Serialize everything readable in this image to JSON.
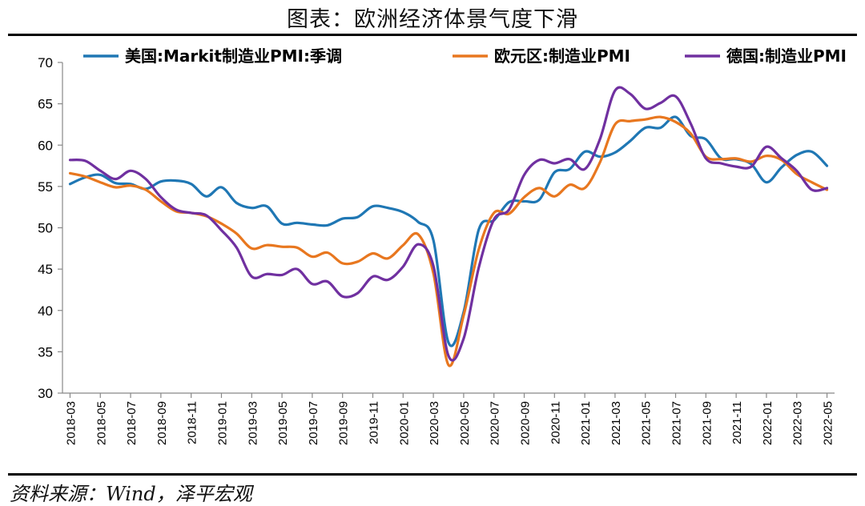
{
  "page": {
    "title": "图表：欧洲经济体景气度下滑",
    "source": "资料来源：Wind，泽平宏观"
  },
  "chart_data": {
    "type": "line",
    "title": "图表：欧洲经济体景气度下滑",
    "ylim": [
      30,
      70
    ],
    "yticks": [
      30,
      35,
      40,
      45,
      50,
      55,
      60,
      65,
      70
    ],
    "grid": false,
    "legend_position": "top",
    "x": [
      "2018-03",
      "2018-04",
      "2018-05",
      "2018-06",
      "2018-07",
      "2018-08",
      "2018-09",
      "2018-10",
      "2018-11",
      "2018-12",
      "2019-01",
      "2019-02",
      "2019-03",
      "2019-04",
      "2019-05",
      "2019-06",
      "2019-07",
      "2019-08",
      "2019-09",
      "2019-10",
      "2019-11",
      "2019-12",
      "2020-01",
      "2020-02",
      "2020-03",
      "2020-04",
      "2020-05",
      "2020-06",
      "2020-07",
      "2020-08",
      "2020-09",
      "2020-10",
      "2020-11",
      "2020-12",
      "2021-01",
      "2021-02",
      "2021-03",
      "2021-04",
      "2021-05",
      "2021-06",
      "2021-07",
      "2021-08",
      "2021-09",
      "2021-10",
      "2021-11",
      "2021-12",
      "2022-01",
      "2022-02",
      "2022-03",
      "2022-04",
      "2022-05"
    ],
    "x_tick_labels": [
      "2018-03",
      "2018-05",
      "2018-07",
      "2018-09",
      "2018-11",
      "2019-01",
      "2019-03",
      "2019-05",
      "2019-07",
      "2019-09",
      "2019-11",
      "2020-01",
      "2020-03",
      "2020-05",
      "2020-07",
      "2020-09",
      "2020-11",
      "2021-01",
      "2021-03",
      "2021-05",
      "2021-07",
      "2021-09",
      "2021-11",
      "2022-01",
      "2022-03",
      "2022-05"
    ],
    "series": [
      {
        "name": "美国:Markit制造业PMI:季调",
        "color": "#1f77b4",
        "values": [
          55.3,
          56.1,
          56.4,
          55.4,
          55.3,
          54.7,
          55.6,
          55.7,
          55.3,
          53.8,
          54.9,
          53.0,
          52.4,
          52.6,
          50.5,
          50.6,
          50.4,
          50.3,
          51.1,
          51.3,
          52.6,
          52.4,
          51.9,
          50.7,
          48.5,
          36.1,
          39.8,
          49.8,
          50.9,
          53.1,
          53.2,
          53.4,
          56.7,
          57.1,
          59.2,
          58.6,
          59.1,
          60.5,
          62.1,
          62.1,
          63.4,
          61.1,
          60.7,
          58.4,
          58.3,
          57.7,
          55.5,
          57.3,
          58.8,
          59.2,
          57.5
        ]
      },
      {
        "name": "欧元区:制造业PMI",
        "color": "#e8771f",
        "values": [
          56.6,
          56.2,
          55.5,
          54.9,
          55.1,
          54.6,
          53.2,
          52.0,
          51.8,
          51.4,
          50.5,
          49.3,
          47.5,
          47.9,
          47.7,
          47.6,
          46.5,
          47.0,
          45.7,
          45.9,
          46.9,
          46.3,
          47.9,
          49.2,
          44.5,
          33.4,
          39.4,
          47.4,
          51.8,
          51.7,
          53.7,
          54.8,
          53.8,
          55.2,
          54.8,
          57.9,
          62.5,
          62.9,
          63.1,
          63.4,
          62.8,
          61.4,
          58.6,
          58.3,
          58.4,
          58.0,
          58.7,
          58.2,
          56.5,
          55.5,
          54.6
        ]
      },
      {
        "name": "德国:制造业PMI",
        "color": "#7030a0",
        "values": [
          58.2,
          58.1,
          56.9,
          55.9,
          56.9,
          55.9,
          53.7,
          52.2,
          51.8,
          51.5,
          49.7,
          47.6,
          44.1,
          44.4,
          44.3,
          45.0,
          43.2,
          43.5,
          41.7,
          42.1,
          44.1,
          43.7,
          45.3,
          48.0,
          45.4,
          34.5,
          36.6,
          45.2,
          51.0,
          52.2,
          56.4,
          58.2,
          57.8,
          58.3,
          57.1,
          60.7,
          66.6,
          66.2,
          64.4,
          65.1,
          65.9,
          62.6,
          58.4,
          57.8,
          57.4,
          57.4,
          59.8,
          58.4,
          56.9,
          54.6,
          54.8
        ]
      }
    ]
  }
}
